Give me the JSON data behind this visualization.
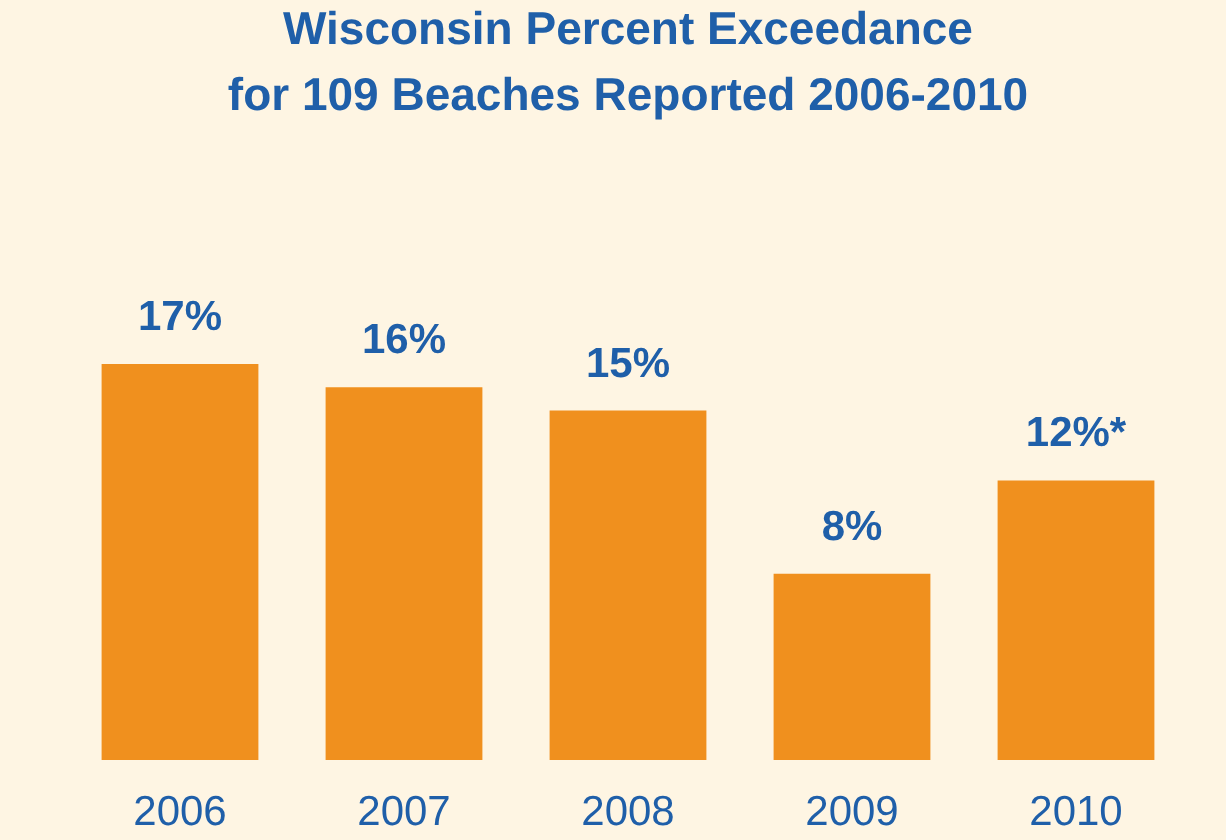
{
  "chart_data": {
    "type": "bar",
    "title": "Wisconsin Percent Exceedance\nfor 109 Beaches Reported 2006-2010",
    "categories": [
      "2006",
      "2007",
      "2008",
      "2009",
      "2010"
    ],
    "values": [
      17,
      16,
      15,
      8,
      12
    ],
    "value_labels": [
      "17%",
      "16%",
      "15%",
      "8%",
      "12%*"
    ],
    "color": "#f0901e"
  }
}
